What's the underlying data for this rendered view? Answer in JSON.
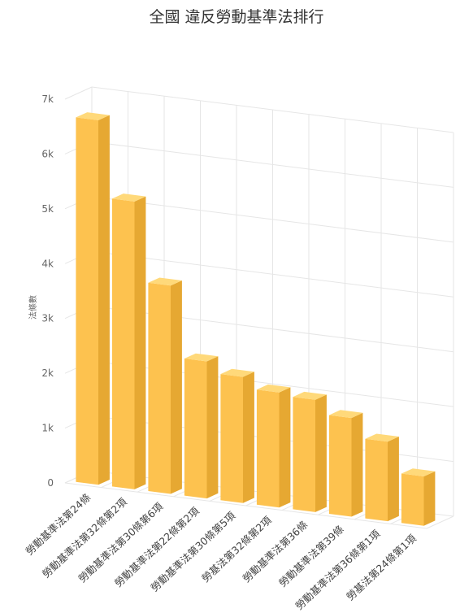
{
  "chart_data": {
    "type": "bar",
    "title": "全國 違反勞動基準法排行",
    "ylabel": "法條數",
    "xlabel": "",
    "ylim": [
      0,
      7000
    ],
    "yticks": [
      0,
      1000,
      2000,
      3000,
      4000,
      5000,
      6000,
      7000
    ],
    "ytick_labels": [
      "0",
      "1k",
      "2k",
      "3k",
      "4k",
      "5k",
      "6k",
      "7k"
    ],
    "categories": [
      "勞動基準法第24條",
      "勞動基準法第32條第2項",
      "勞動基準法第30條第6項",
      "勞動基準法第22條第2項",
      "勞動基準法第30條第5項",
      "勞基法第32條第2項",
      "勞動基準法第36條",
      "勞動基準法第39條",
      "勞動基準法第36條第1項",
      "勞基法第24條第1項"
    ],
    "values": [
      6650,
      5250,
      3800,
      2500,
      2300,
      2100,
      2050,
      1800,
      1450,
      900
    ],
    "grid": true,
    "legend": "none",
    "colors": {
      "bar_front": "#FDC24F",
      "bar_side": "#E6A832",
      "bar_top": "#FFD97A",
      "grid": "#E6E6E6"
    }
  }
}
